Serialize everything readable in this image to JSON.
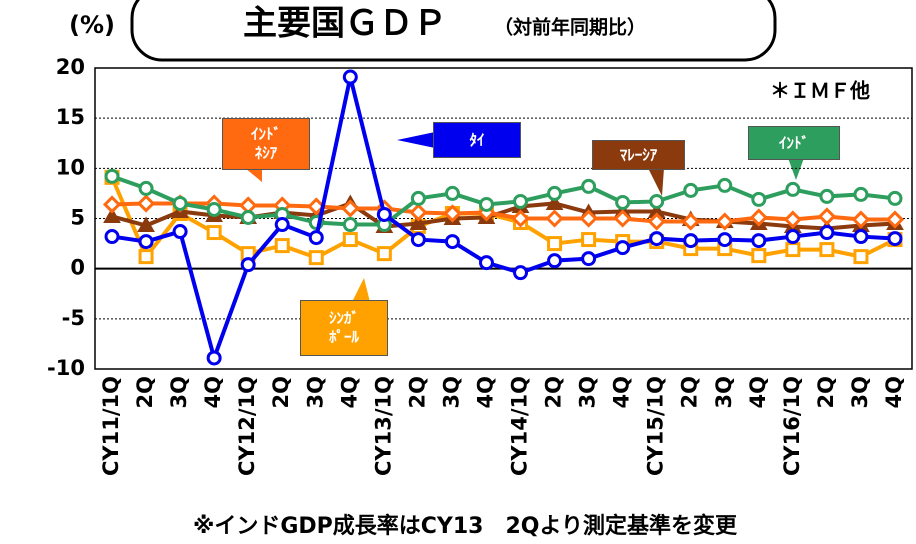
{
  "chart_data": {
    "type": "line",
    "title": "主要国ＧＤＰ",
    "subtitle": "（対前年同期比）",
    "y_label": "(%)",
    "annotation": "＊ＩＭＦ他",
    "footnote": "※インドGDP成長率はCY13　2Qより測定基準を変更",
    "categories": [
      "CY11/1Q",
      "2Q",
      "3Q",
      "4Q",
      "CY12/1Q",
      "2Q",
      "3Q",
      "4Q",
      "CY13/1Q",
      "2Q",
      "3Q",
      "4Q",
      "CY14/1Q",
      "2Q",
      "3Q",
      "4Q",
      "CY15/1Q",
      "2Q",
      "3Q",
      "4Q",
      "CY16/1Q",
      "2Q",
      "3Q",
      "4Q"
    ],
    "ylim": [
      -10,
      20
    ],
    "yticks": [
      -10,
      -5,
      0,
      5,
      10,
      15,
      20
    ],
    "grid": true,
    "series": [
      {
        "name": "ｼﾝｶﾞ\nﾎﾟｰﾙ",
        "color": "#ffa200",
        "marker": "square",
        "marker_filled": false,
        "values": [
          9.1,
          1.2,
          5.5,
          3.6,
          1.5,
          2.3,
          1.1,
          2.9,
          1.5,
          4.2,
          5.5,
          5.5,
          4.6,
          2.5,
          2.9,
          2.7,
          2.7,
          2.0,
          2.0,
          1.3,
          1.9,
          1.9,
          1.2,
          2.9
        ]
      },
      {
        "name": "ﾏﾚｰｼｱ",
        "color": "#8b3a0e",
        "marker": "triangle",
        "marker_filled": true,
        "values": [
          5.2,
          4.3,
          5.7,
          5.3,
          5.1,
          5.6,
          5.3,
          6.5,
          4.2,
          4.5,
          5.0,
          5.1,
          6.2,
          6.5,
          5.6,
          5.7,
          5.7,
          4.9,
          4.7,
          4.5,
          4.2,
          4.0,
          4.3,
          4.5
        ]
      },
      {
        "name": "ｲﾝﾄﾞ\nﾈｼｱ",
        "color": "#ff6a10",
        "marker": "diamond",
        "marker_filled": false,
        "values": [
          6.4,
          6.5,
          6.5,
          6.5,
          6.3,
          6.3,
          6.2,
          6.0,
          6.0,
          5.6,
          5.5,
          5.6,
          5.0,
          5.0,
          5.0,
          5.0,
          4.7,
          4.7,
          4.7,
          5.1,
          4.9,
          5.2,
          4.9,
          4.9
        ]
      },
      {
        "name": "ｲﾝﾄﾞ",
        "color": "#2e9e5e",
        "marker": "circle",
        "marker_filled": false,
        "values": [
          9.2,
          8.0,
          6.5,
          5.9,
          5.1,
          5.4,
          4.6,
          4.4,
          4.4,
          7.0,
          7.5,
          6.4,
          6.7,
          7.5,
          8.2,
          6.6,
          6.7,
          7.8,
          8.3,
          6.9,
          7.9,
          7.2,
          7.4,
          7.0
        ]
      },
      {
        "name": "ﾀｲ",
        "color": "#0000ee",
        "marker": "circle",
        "marker_filled": false,
        "values": [
          3.2,
          2.7,
          3.7,
          -8.9,
          0.4,
          4.4,
          3.1,
          19.1,
          5.4,
          2.9,
          2.7,
          0.6,
          -0.4,
          0.8,
          1.0,
          2.1,
          3.0,
          2.8,
          2.9,
          2.8,
          3.2,
          3.6,
          3.2,
          3.0
        ]
      }
    ]
  }
}
